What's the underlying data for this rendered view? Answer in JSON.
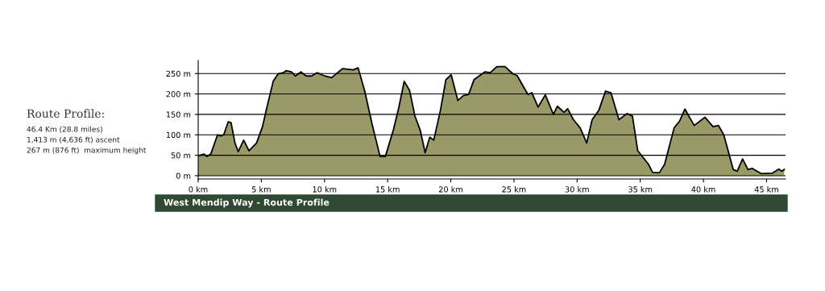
{
  "chart_data": {
    "type": "area",
    "title": "West Mendip Way - Route Profile",
    "annotations": [
      "Route Profile:",
      "46.4 Km (28.8 miles)",
      "1,413 m (4,636 ft) ascent",
      "267 m (876 ft)  maximum height"
    ],
    "x": [
      0,
      0.47,
      0.68,
      1.0,
      1.53,
      1.79,
      2.02,
      2.38,
      2.6,
      2.91,
      3.17,
      3.6,
      4.02,
      4.62,
      5.09,
      5.43,
      5.94,
      6.32,
      6.74,
      6.96,
      7.38,
      7.7,
      8.13,
      8.55,
      8.98,
      9.4,
      9.94,
      10.57,
      11.43,
      12.28,
      12.66,
      13.17,
      13.76,
      14.4,
      14.82,
      15.46,
      15.88,
      16.31,
      16.73,
      17.16,
      17.59,
      17.97,
      18.33,
      18.65,
      19.18,
      19.61,
      20.03,
      20.56,
      20.99,
      21.41,
      21.84,
      22.69,
      23.12,
      23.65,
      24.29,
      24.93,
      25.25,
      26.1,
      26.42,
      26.91,
      27.16,
      27.48,
      28.12,
      28.44,
      28.97,
      29.25,
      29.71,
      30.24,
      30.76,
      31.19,
      31.72,
      32.25,
      32.68,
      33.31,
      33.95,
      34.38,
      34.8,
      35.65,
      35.97,
      36.51,
      36.93,
      37.68,
      38.1,
      38.53,
      39.27,
      40.12,
      40.76,
      41.19,
      41.61,
      42.36,
      42.68,
      43.1,
      43.53,
      43.85,
      44.59,
      45.44,
      45.97,
      46.19,
      46.4
    ],
    "series": [
      {
        "color": "#9a9a68",
        "values": [
          49,
          53,
          47,
          53,
          100,
          97,
          100,
          132,
          130,
          80,
          59,
          87,
          61,
          80,
          120,
          166,
          231,
          249,
          252,
          257,
          254,
          244,
          254,
          244,
          244,
          252,
          245,
          240,
          262,
          259,
          264,
          209,
          127,
          47,
          47,
          113,
          166,
          231,
          209,
          146,
          110,
          56,
          94,
          87,
          160,
          235,
          247,
          184,
          196,
          199,
          235,
          254,
          252,
          267,
          267,
          249,
          245,
          199,
          203,
          168,
          181,
          198,
          150,
          170,
          155,
          164,
          137,
          117,
          80,
          137,
          160,
          207,
          203,
          137,
          152,
          146,
          61,
          28,
          8,
          7,
          28,
          117,
          133,
          163,
          123,
          143,
          120,
          123,
          100,
          15,
          11,
          41,
          15,
          18,
          5,
          6,
          16,
          11,
          15
        ]
      }
    ],
    "xlim": [
      0,
      46.5
    ],
    "ylim": [
      -8,
      282
    ],
    "xticks": [
      {
        "value": 0,
        "label": "0 km"
      },
      {
        "value": 5,
        "label": "5 km"
      },
      {
        "value": 10,
        "label": "10 km"
      },
      {
        "value": 15,
        "label": "15 km"
      },
      {
        "value": 20,
        "label": "20 km"
      },
      {
        "value": 25,
        "label": "25 km"
      },
      {
        "value": 30,
        "label": "30 km"
      },
      {
        "value": 35,
        "label": "35 km"
      },
      {
        "value": 40,
        "label": "40 km"
      },
      {
        "value": 45,
        "label": "45 km"
      }
    ],
    "yticks": [
      {
        "value": 0,
        "label": "0 m"
      },
      {
        "value": 50,
        "label": "50 m"
      },
      {
        "value": 100,
        "label": "100 m"
      },
      {
        "value": 150,
        "label": "150 m"
      },
      {
        "value": 200,
        "label": "200 m"
      },
      {
        "value": 250,
        "label": "250 m"
      }
    ],
    "grid": "y"
  }
}
